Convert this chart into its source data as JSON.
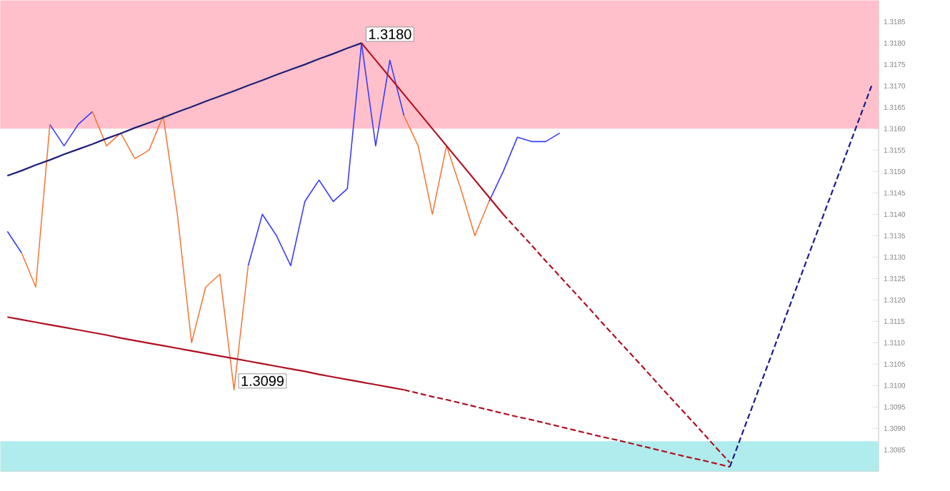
{
  "chart_data": {
    "type": "line",
    "tick_labels": "y",
    "grid": false,
    "ylim": [
      1.308,
      1.319
    ],
    "yticks": [
      {
        "value": 1.3085,
        "label": "1.3085"
      },
      {
        "value": 1.309,
        "label": "1.3090"
      },
      {
        "value": 1.3095,
        "label": "1.3095"
      },
      {
        "value": 1.31,
        "label": "1.3100"
      },
      {
        "value": 1.3105,
        "label": "1.3105"
      },
      {
        "value": 1.311,
        "label": "1.3110"
      },
      {
        "value": 1.3115,
        "label": "1.3115"
      },
      {
        "value": 1.312,
        "label": "1.3120"
      },
      {
        "value": 1.3125,
        "label": "1.3125"
      },
      {
        "value": 1.313,
        "label": "1.3130"
      },
      {
        "value": 1.3135,
        "label": "1.3135"
      },
      {
        "value": 1.314,
        "label": "1.3140"
      },
      {
        "value": 1.3145,
        "label": "1.3145"
      },
      {
        "value": 1.315,
        "label": "1.3150"
      },
      {
        "value": 1.3155,
        "label": "1.3155"
      },
      {
        "value": 1.316,
        "label": "1.3160"
      },
      {
        "value": 1.3165,
        "label": "1.3165"
      },
      {
        "value": 1.317,
        "label": "1.3170"
      },
      {
        "value": 1.3175,
        "label": "1.3175"
      },
      {
        "value": 1.318,
        "label": "1.3180"
      },
      {
        "value": 1.3185,
        "label": "1.3185"
      }
    ],
    "categories": [
      null,
      null,
      null,
      null,
      null,
      null,
      null,
      null,
      null,
      null,
      null,
      null,
      null,
      null,
      null,
      null,
      null,
      null,
      null,
      null,
      null,
      null,
      null,
      null,
      null,
      null,
      null,
      null,
      null,
      null,
      null,
      null,
      null,
      null,
      null,
      null,
      null,
      null,
      null,
      null,
      null,
      null,
      null,
      null,
      null,
      null,
      null,
      null,
      null,
      null,
      null,
      null,
      null,
      null,
      null,
      null,
      null,
      null,
      null,
      null,
      null,
      null
    ],
    "series": [
      {
        "color": "#3a3aff",
        "values": [
          1.3136,
          1.3131,
          null,
          1.3161,
          1.3156,
          1.3161,
          1.3164,
          null,
          null,
          null,
          null,
          null,
          null,
          null,
          null,
          null,
          null,
          1.3128,
          1.314,
          1.3135,
          1.3128,
          1.3143,
          1.3148,
          1.3143,
          1.3146,
          1.318,
          1.3156,
          1.3176,
          1.3163,
          null,
          null,
          null,
          null,
          null,
          1.3143,
          1.315,
          1.3158,
          1.3157,
          1.3157,
          1.3159,
          null,
          null,
          null,
          null,
          null,
          null,
          null,
          null,
          null,
          null,
          null,
          null,
          null,
          null,
          null,
          null,
          null,
          null,
          null,
          null,
          null,
          null
        ],
        "value_labels": [
          null,
          null,
          null,
          null,
          null,
          null,
          null,
          null,
          null,
          null,
          null,
          null,
          null,
          null,
          null,
          null,
          null,
          null,
          null,
          null,
          null,
          null,
          null,
          null,
          null,
          "1.3180",
          null,
          null,
          null,
          null,
          null,
          null,
          null,
          null,
          null,
          null,
          null,
          null,
          null,
          null,
          null,
          null,
          null,
          null,
          null,
          null,
          null,
          null,
          null,
          null,
          null,
          null,
          null,
          null,
          null,
          null,
          null,
          null,
          null,
          null,
          null,
          null
        ]
      },
      {
        "color": "#f47a3c",
        "values": [
          null,
          1.3131,
          1.3123,
          1.3161,
          null,
          null,
          1.3164,
          1.3156,
          1.3159,
          1.3153,
          1.3155,
          1.3163,
          1.314,
          1.311,
          1.3123,
          1.3126,
          1.3099,
          1.3128,
          null,
          null,
          null,
          null,
          null,
          null,
          null,
          null,
          null,
          null,
          1.3163,
          1.3156,
          1.314,
          1.3156,
          1.3146,
          1.3135,
          1.3143,
          null,
          null,
          null,
          null,
          null,
          null,
          null,
          null,
          null,
          null,
          null,
          null,
          null,
          null,
          null,
          null,
          null,
          null,
          null,
          null,
          null,
          null,
          null,
          null,
          null,
          null,
          null
        ],
        "value_labels": [
          null,
          null,
          null,
          null,
          null,
          null,
          null,
          null,
          null,
          null,
          null,
          null,
          null,
          null,
          null,
          null,
          "1.3099",
          null,
          null,
          null,
          null,
          null,
          null,
          null,
          null,
          null,
          null,
          null,
          null,
          null,
          null,
          null,
          null,
          null,
          null,
          null,
          null,
          null,
          null,
          null,
          null,
          null,
          null,
          null,
          null,
          null,
          null,
          null,
          null,
          null,
          null,
          null,
          null,
          null,
          null,
          null,
          null,
          null,
          null,
          null,
          null,
          null
        ]
      },
      {
        "color": "#1e1e78",
        "values": [
          1.3149,
          1.31502,
          1.31515,
          1.31527,
          1.3154,
          1.31552,
          1.31564,
          1.31577,
          1.31589,
          1.31602,
          1.31614,
          1.31626,
          1.31639,
          1.31651,
          1.31664,
          1.31676,
          1.31688,
          1.31701,
          1.31713,
          1.31726,
          1.31738,
          1.3175,
          1.31763,
          1.31775,
          1.31788,
          1.318,
          null,
          null,
          null,
          null,
          null,
          null,
          null,
          null,
          null,
          null,
          null,
          null,
          null,
          null,
          null,
          null,
          null,
          null,
          null,
          null,
          null,
          null,
          null,
          null,
          null,
          null,
          null,
          null,
          null,
          null,
          null,
          null,
          null,
          null,
          null,
          null
        ]
      },
      {
        "color": "#b01020",
        "values": [
          null,
          null,
          null,
          null,
          null,
          null,
          null,
          null,
          null,
          null,
          null,
          null,
          null,
          null,
          null,
          null,
          null,
          null,
          null,
          null,
          null,
          null,
          null,
          null,
          null,
          1.318,
          1.3176,
          1.3172,
          1.3168,
          1.3164,
          1.316,
          1.3156,
          1.3152,
          1.3148,
          1.3144,
          1.314,
          null,
          null,
          null,
          null,
          null,
          null,
          null,
          null,
          null,
          null,
          null,
          null,
          null,
          null,
          null,
          null,
          null,
          null,
          null,
          null,
          null,
          null,
          null,
          null,
          null,
          null
        ]
      },
      {
        "color": "#b01020",
        "line_style": "dashed",
        "values": [
          null,
          null,
          null,
          null,
          null,
          null,
          null,
          null,
          null,
          null,
          null,
          null,
          null,
          null,
          null,
          null,
          null,
          null,
          null,
          null,
          null,
          null,
          null,
          null,
          null,
          null,
          null,
          null,
          null,
          null,
          null,
          null,
          null,
          null,
          null,
          1.314,
          1.31364,
          1.31328,
          1.31291,
          1.31255,
          1.31219,
          1.31183,
          1.31146,
          1.3111,
          1.31074,
          1.31038,
          1.31001,
          1.30965,
          1.30929,
          1.30893,
          1.30856,
          1.3082,
          null,
          null,
          null,
          null,
          null,
          null,
          null,
          null,
          null,
          null
        ]
      },
      {
        "color": "#b01020",
        "values": [
          1.3116,
          1.31154,
          1.31148,
          1.31142,
          1.31136,
          1.3113,
          1.31124,
          1.31118,
          1.31111,
          1.31105,
          1.31099,
          1.31093,
          1.31087,
          1.31081,
          1.31075,
          1.31069,
          1.31063,
          1.31057,
          1.31051,
          1.31045,
          1.31039,
          1.31033,
          1.31026,
          1.3102,
          1.31014,
          1.31008,
          1.31002,
          1.30996,
          1.3099,
          null,
          null,
          null,
          null,
          null,
          null,
          null,
          null,
          null,
          null,
          null,
          null,
          null,
          null,
          null,
          null,
          null,
          null,
          null,
          null,
          null,
          null,
          null,
          null,
          null,
          null,
          null,
          null,
          null,
          null,
          null,
          null,
          null
        ]
      },
      {
        "color": "#b01020",
        "line_style": "dashed",
        "values": [
          null,
          null,
          null,
          null,
          null,
          null,
          null,
          null,
          null,
          null,
          null,
          null,
          null,
          null,
          null,
          null,
          null,
          null,
          null,
          null,
          null,
          null,
          null,
          null,
          null,
          null,
          null,
          null,
          1.3099,
          1.30982,
          1.30974,
          1.30967,
          1.30959,
          1.30951,
          1.30943,
          1.30935,
          1.30927,
          1.3092,
          1.30912,
          1.30904,
          1.30896,
          1.30888,
          1.3088,
          1.30873,
          1.30865,
          1.30857,
          1.30849,
          1.30841,
          1.30833,
          1.30826,
          1.30818,
          1.3081,
          null,
          null,
          null,
          null,
          null,
          null,
          null,
          null,
          null,
          null
        ]
      },
      {
        "color": "#1a1a8c",
        "line_style": "dashed",
        "values": [
          null,
          null,
          null,
          null,
          null,
          null,
          null,
          null,
          null,
          null,
          null,
          null,
          null,
          null,
          null,
          null,
          null,
          null,
          null,
          null,
          null,
          null,
          null,
          null,
          null,
          null,
          null,
          null,
          null,
          null,
          null,
          null,
          null,
          null,
          null,
          null,
          null,
          null,
          null,
          null,
          null,
          null,
          null,
          null,
          null,
          null,
          null,
          null,
          null,
          null,
          null,
          1.3081,
          1.30899,
          1.30988,
          1.31077,
          1.31166,
          1.31255,
          1.31344,
          1.31433,
          1.31522,
          1.31611,
          1.317
        ]
      }
    ],
    "bands": [
      {
        "axis": "y",
        "from": 1.316,
        "to": 1.319,
        "color": "#ffc0cb"
      },
      {
        "axis": "y",
        "from": 1.308,
        "to": 1.3087,
        "color": "#b0eced"
      }
    ]
  }
}
